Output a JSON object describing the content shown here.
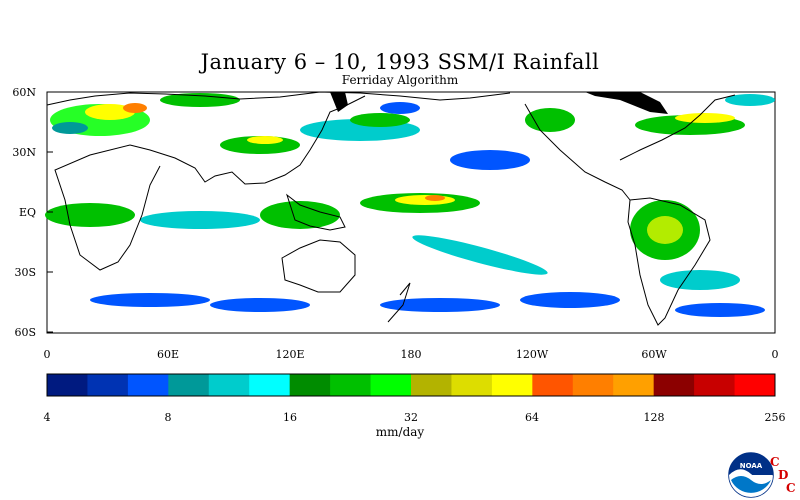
{
  "title": "January 6 – 10, 1993 SSM/I Rainfall",
  "subtitle": "Ferriday Algorithm",
  "lat_labels": [
    "60N",
    "30N",
    "EQ",
    "30S",
    "60S"
  ],
  "lon_labels": [
    "0",
    "60E",
    "120E",
    "180",
    "120W",
    "60W",
    "0"
  ],
  "colorbar": {
    "unit": "mm/day",
    "tick_labels": [
      "4",
      "8",
      "16",
      "32",
      "64",
      "128",
      "256"
    ],
    "colors": [
      "#001a80",
      "#0033b3",
      "#0055ff",
      "#009999",
      "#00cccc",
      "#00ffff",
      "#008c00",
      "#00c000",
      "#00ff00",
      "#b3b300",
      "#dddd00",
      "#ffff00",
      "#ff5500",
      "#ff7f00",
      "#ffa000",
      "#8c0000",
      "#c80000",
      "#ff0000"
    ]
  },
  "logo": {
    "name": "NOAA",
    "letters": [
      "C",
      "D",
      "C"
    ]
  }
}
